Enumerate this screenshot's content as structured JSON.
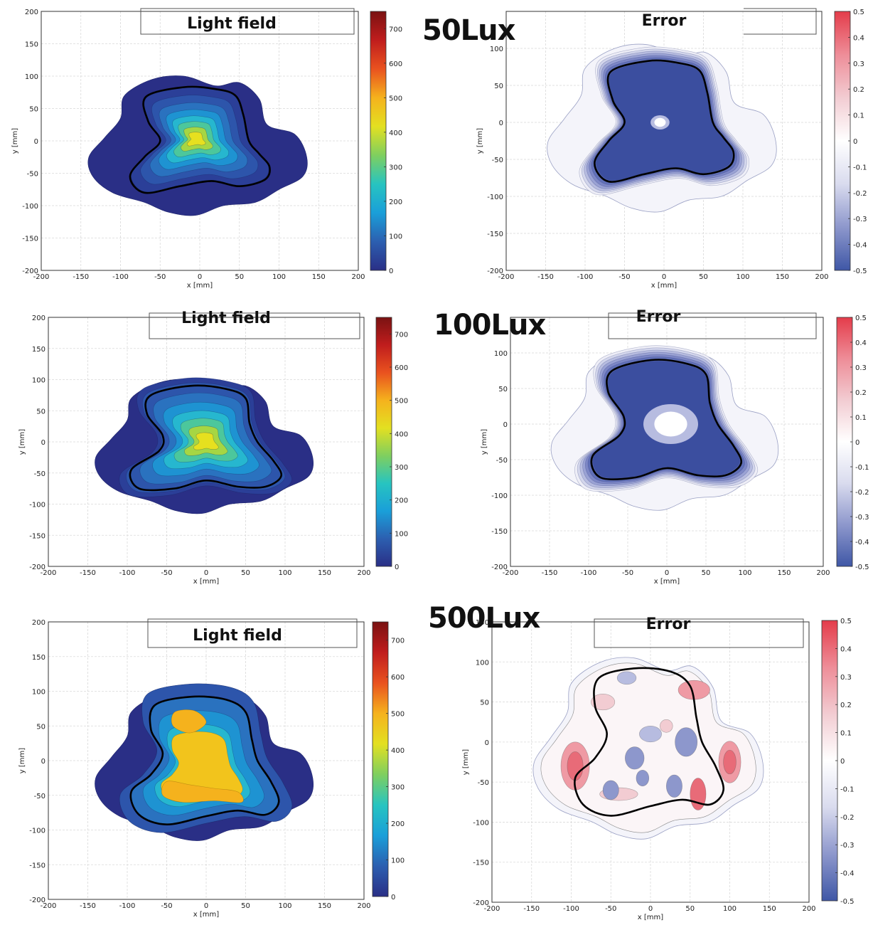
{
  "figure": {
    "row_labels": [
      "50Lux",
      "100Lux",
      "500Lux"
    ]
  },
  "colors": {
    "outline": "#000000",
    "grid": "#d9d9d9",
    "jet": [
      "#2a2f86",
      "#2c5fb0",
      "#1a9fd9",
      "#27c4c0",
      "#7fcf5f",
      "#e3e021",
      "#f5b21d",
      "#e9521f",
      "#c01d1d",
      "#7a1212"
    ],
    "diverging": [
      "#3f57a6",
      "#8d97cc",
      "#d9dbee",
      "#ffffff",
      "#f2ccd2",
      "#ee8d98",
      "#e43c4a"
    ]
  },
  "chart_data": [
    {
      "type": "heatmap",
      "row": "50Lux",
      "title": "Light field",
      "xlabel": "x [mm]",
      "ylabel": "y [mm]",
      "xlim": [
        -200,
        200
      ],
      "ylim": [
        -200,
        200
      ],
      "xticks": [
        -200,
        -150,
        -100,
        -50,
        0,
        50,
        100,
        150,
        200
      ],
      "yticks": [
        200,
        150,
        100,
        50,
        0,
        -50,
        -100,
        -150,
        -200
      ],
      "colorbar": {
        "min": 0,
        "max": 750,
        "ticks": [
          0,
          100,
          200,
          300,
          400,
          500,
          600,
          700
        ]
      },
      "grid": true,
      "peak": {
        "x": -5,
        "y": 3,
        "value": 480
      },
      "background_value": 30
    },
    {
      "type": "heatmap",
      "row": "50Lux",
      "title": "Error",
      "xlabel": "x [mm]",
      "ylabel": "y [mm]",
      "xlim": [
        -200,
        200
      ],
      "ylim": [
        -200,
        150
      ],
      "xticks": [
        -200,
        -150,
        -100,
        -50,
        0,
        50,
        100,
        150,
        200
      ],
      "yticks": [
        100,
        50,
        0,
        -50,
        -100,
        -150,
        -200
      ],
      "colorbar": {
        "min": -0.5,
        "max": 0.5,
        "ticks": [
          0.5,
          0.4,
          0.3,
          0.2,
          0.1,
          0,
          -0.1,
          -0.2,
          -0.3,
          -0.4,
          -0.5
        ]
      },
      "grid": true,
      "min_error": -0.45,
      "center_hole": {
        "x": -5,
        "y": 0,
        "value": 0
      }
    },
    {
      "type": "heatmap",
      "row": "100Lux",
      "title": "Light field",
      "xlabel": "x [mm]",
      "ylabel": "y [mm]",
      "xlim": [
        -200,
        200
      ],
      "ylim": [
        -200,
        200
      ],
      "xticks": [
        -200,
        -150,
        -100,
        -50,
        0,
        50,
        100,
        150,
        200
      ],
      "yticks": [
        200,
        150,
        100,
        50,
        0,
        -50,
        -100,
        -150,
        -200
      ],
      "colorbar": {
        "min": 0,
        "max": 750,
        "ticks": [
          0,
          100,
          200,
          300,
          400,
          500,
          600,
          700
        ]
      },
      "grid": true,
      "peak": {
        "x": 0,
        "y": 0,
        "value": 490
      },
      "background_value": 30
    },
    {
      "type": "heatmap",
      "row": "100Lux",
      "title": "Error",
      "xlabel": "x [mm]",
      "ylabel": "y [mm]",
      "xlim": [
        -200,
        200
      ],
      "ylim": [
        -200,
        150
      ],
      "xticks": [
        -200,
        -150,
        -100,
        -50,
        0,
        50,
        100,
        150,
        200
      ],
      "yticks": [
        100,
        50,
        0,
        -50,
        -100,
        -150,
        -200
      ],
      "colorbar": {
        "min": -0.5,
        "max": 0.5,
        "ticks": [
          0.5,
          0.4,
          0.3,
          0.2,
          0.1,
          0,
          -0.1,
          -0.2,
          -0.3,
          -0.4,
          -0.5
        ]
      },
      "grid": true,
      "min_error": -0.4,
      "center_hole": {
        "x": 5,
        "y": 0,
        "value": 0
      }
    },
    {
      "type": "heatmap",
      "row": "500Lux",
      "title": "Light field",
      "xlabel": "x [mm]",
      "ylabel": "y [mm]",
      "xlim": [
        -200,
        200
      ],
      "ylim": [
        -200,
        200
      ],
      "xticks": [
        -200,
        -150,
        -100,
        -50,
        0,
        50,
        100,
        150,
        200
      ],
      "yticks": [
        200,
        150,
        100,
        50,
        0,
        -50,
        -100,
        -150,
        -200
      ],
      "colorbar": {
        "min": 0,
        "max": 750,
        "ticks": [
          0,
          100,
          200,
          300,
          400,
          500,
          600,
          700
        ]
      },
      "grid": true,
      "peak": {
        "x": -10,
        "y": -20,
        "value": 510
      },
      "background_value": 30
    },
    {
      "type": "heatmap",
      "row": "500Lux",
      "title": "Error",
      "xlabel": "x [mm]",
      "ylabel": "y [mm]",
      "xlim": [
        -200,
        200
      ],
      "ylim": [
        -200,
        150
      ],
      "xticks": [
        -200,
        -150,
        -100,
        -50,
        0,
        50,
        100,
        150,
        200
      ],
      "yticks": [
        150,
        100,
        50,
        0,
        -50,
        -100,
        -150,
        -200
      ],
      "colorbar": {
        "min": -0.5,
        "max": 0.5,
        "ticks": [
          0.5,
          0.4,
          0.3,
          0.2,
          0.1,
          0,
          -0.1,
          -0.2,
          -0.3,
          -0.4,
          -0.5
        ]
      },
      "grid": true,
      "error_range": [
        -0.3,
        0.25
      ]
    }
  ]
}
